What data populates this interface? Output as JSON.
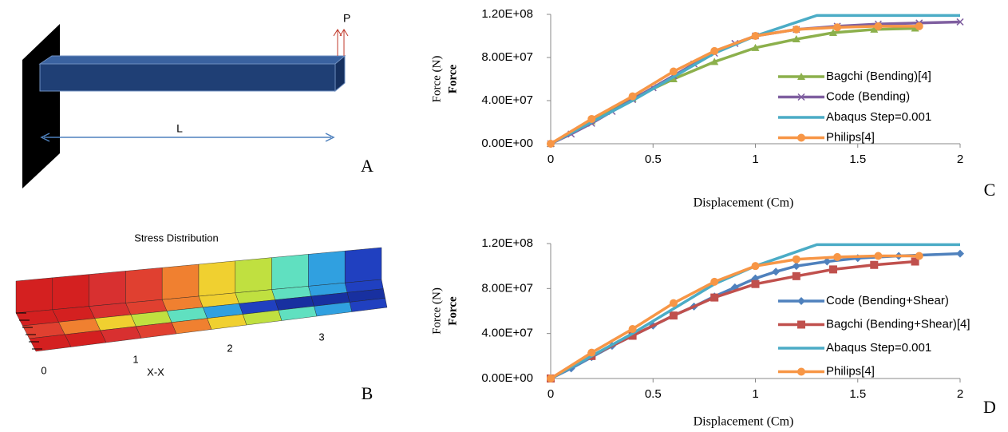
{
  "panel_a": {
    "load": "P",
    "length": "L",
    "panel": "A"
  },
  "panel_b": {
    "title": "Stress Distribution",
    "ticks": [
      "0",
      "1",
      "2",
      "3"
    ],
    "xlabel": "X-X",
    "panel": "B"
  },
  "chart_data": [
    {
      "type": "line",
      "xlabel": "Displacement (Cm)",
      "ylabel": "Force (N)",
      "ylabel_bold": "Force",
      "panel": "C",
      "xlim": [
        0,
        2
      ],
      "xticks": [
        0,
        0.5,
        1,
        1.5,
        2
      ],
      "ylim": [
        0,
        120000000
      ],
      "yticks": [
        {
          "value": 0,
          "label": "0.00E+00"
        },
        {
          "value": 40000000,
          "label": "4.00E+07"
        },
        {
          "value": 80000000,
          "label": "8.00E+07"
        },
        {
          "value": 120000000,
          "label": "1.20E+08"
        }
      ],
      "legend": "right",
      "series": [
        {
          "name": "Bagchi (Bending)[4]",
          "color": "#8cb04c",
          "marker": "triangle",
          "x": [
            0,
            0.2,
            0.4,
            0.6,
            0.8,
            1.0,
            1.2,
            1.38,
            1.58,
            1.78
          ],
          "values": [
            0,
            21000000,
            42000000,
            60000000,
            76000000,
            89000000,
            97000000,
            103000000,
            106000000,
            107000000
          ]
        },
        {
          "name": "Code (Bending)",
          "color": "#7f5fa0",
          "marker": "x",
          "x": [
            0,
            0.1,
            0.2,
            0.3,
            0.4,
            0.5,
            0.6,
            0.7,
            0.8,
            0.9,
            1.0,
            1.2,
            1.4,
            1.6,
            1.8,
            2.0
          ],
          "values": [
            0,
            9000000,
            19000000,
            30000000,
            41000000,
            52000000,
            63000000,
            74000000,
            84000000,
            93000000,
            100000000,
            106000000,
            109000000,
            111000000,
            112000000,
            113000000
          ]
        },
        {
          "name": "Abaqus Step=0.001",
          "color": "#4bacc6",
          "marker": "none",
          "x": [
            0,
            0.2,
            0.4,
            0.6,
            0.8,
            1.0,
            1.3,
            2.0
          ],
          "values": [
            0,
            20000000,
            40000000,
            62000000,
            84000000,
            100000000,
            119000000,
            119000000
          ]
        },
        {
          "name": "Philips[4]",
          "color": "#f79646",
          "marker": "circle",
          "x": [
            0,
            0.2,
            0.4,
            0.6,
            0.8,
            1.0,
            1.2,
            1.4,
            1.6,
            1.8
          ],
          "values": [
            0,
            23000000,
            44000000,
            67000000,
            86000000,
            100000000,
            106000000,
            108000000,
            109000000,
            109000000
          ]
        }
      ]
    },
    {
      "type": "line",
      "xlabel": "Displacement (Cm)",
      "ylabel": "Force (N)",
      "ylabel_bold": "Force",
      "panel": "D",
      "xlim": [
        0,
        2
      ],
      "xticks": [
        0,
        0.5,
        1,
        1.5,
        2
      ],
      "ylim": [
        0,
        120000000
      ],
      "yticks": [
        {
          "value": 0,
          "label": "0.00E+00"
        },
        {
          "value": 40000000,
          "label": "4.00E+07"
        },
        {
          "value": 80000000,
          "label": "8.00E+07"
        },
        {
          "value": 120000000,
          "label": "1.20E+08"
        }
      ],
      "legend": "right",
      "series": [
        {
          "name": "Code (Bending+Shear)",
          "color": "#4f81bd",
          "marker": "diamond",
          "x": [
            0,
            0.1,
            0.2,
            0.3,
            0.4,
            0.5,
            0.6,
            0.7,
            0.8,
            0.9,
            1.0,
            1.1,
            1.2,
            1.35,
            1.5,
            1.7,
            2.0
          ],
          "values": [
            0,
            9000000,
            19000000,
            29000000,
            38000000,
            47000000,
            56000000,
            64000000,
            73000000,
            81000000,
            89000000,
            95000000,
            100000000,
            104000000,
            107000000,
            109000000,
            111000000
          ]
        },
        {
          "name": "Bagchi (Bending+Shear)[4]",
          "color": "#c0504d",
          "marker": "square",
          "x": [
            0,
            0.2,
            0.4,
            0.6,
            0.8,
            1.0,
            1.2,
            1.38,
            1.58,
            1.78
          ],
          "values": [
            0,
            20000000,
            38000000,
            56000000,
            72000000,
            84000000,
            91000000,
            97000000,
            101000000,
            104000000
          ]
        },
        {
          "name": "Abaqus Step=0.001",
          "color": "#4bacc6",
          "marker": "none",
          "x": [
            0,
            0.2,
            0.4,
            0.6,
            0.8,
            1.0,
            1.3,
            2.0
          ],
          "values": [
            0,
            20000000,
            40000000,
            62000000,
            84000000,
            100000000,
            119000000,
            119000000
          ]
        },
        {
          "name": "Philips[4]",
          "color": "#f79646",
          "marker": "circle",
          "x": [
            0,
            0.2,
            0.4,
            0.6,
            0.8,
            1.0,
            1.2,
            1.4,
            1.6,
            1.8
          ],
          "values": [
            0,
            23000000,
            44000000,
            67000000,
            86000000,
            100000000,
            106000000,
            108000000,
            109000000,
            109000000
          ]
        }
      ]
    }
  ]
}
